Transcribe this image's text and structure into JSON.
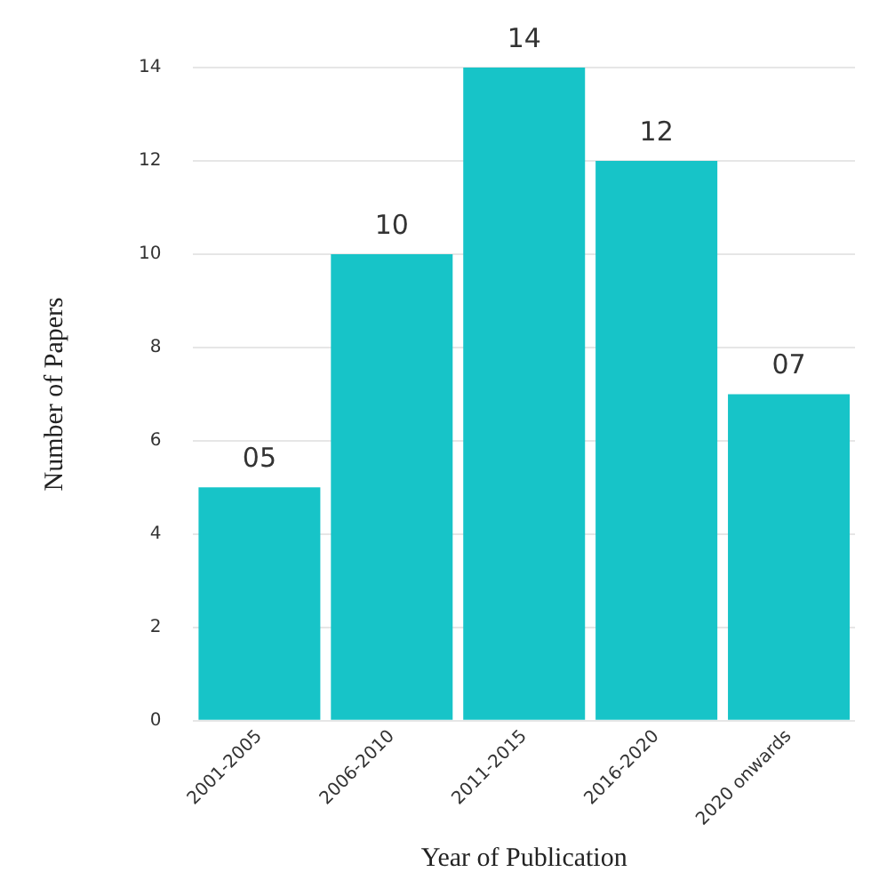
{
  "chart_data": {
    "type": "bar",
    "xlabel": "Year of Publication",
    "ylabel": "Number of Papers",
    "categories": [
      "2001-2005",
      "2006-2010",
      "2011-2015",
      "2016-2020",
      "2020 onwards"
    ],
    "values": [
      5,
      10,
      14,
      12,
      7
    ],
    "value_labels": [
      "05",
      "10",
      "14",
      "12",
      "07"
    ],
    "color": "#17c4c8",
    "ylim": [
      0,
      14
    ],
    "yticks": [
      0,
      2,
      4,
      6,
      8,
      10,
      12,
      14
    ],
    "grid": "y",
    "legend": false
  }
}
